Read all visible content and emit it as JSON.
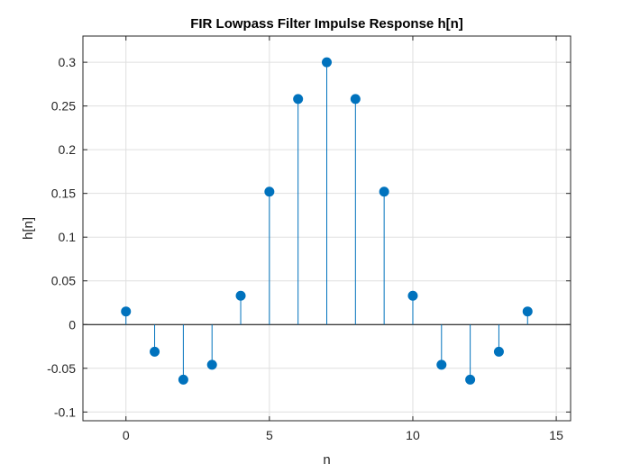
{
  "chart_data": {
    "type": "stem",
    "title": "FIR Lowpass Filter Impulse Response h[n]",
    "xlabel": "n",
    "ylabel": "h[n]",
    "xlim": [
      -1.5,
      15.5
    ],
    "ylim": [
      -0.11,
      0.33
    ],
    "xticks": [
      0,
      5,
      10,
      15
    ],
    "yticks": [
      -0.1,
      -0.05,
      0,
      0.05,
      0.1,
      0.15,
      0.2,
      0.25,
      0.3
    ],
    "ytick_labels": [
      "-0.1",
      "-0.05",
      "0",
      "0.05",
      "0.1",
      "0.15",
      "0.2",
      "0.25",
      "0.3"
    ],
    "grid": true,
    "series": [
      {
        "x": [
          0,
          1,
          2,
          3,
          4,
          5,
          6,
          7,
          8,
          9,
          10,
          11,
          12,
          13,
          14
        ],
        "values": [
          0.015,
          -0.031,
          -0.063,
          -0.046,
          0.033,
          0.152,
          0.258,
          0.3,
          0.258,
          0.152,
          0.033,
          -0.046,
          -0.063,
          -0.031,
          0.015
        ]
      }
    ]
  },
  "colors": {
    "stem": "#0072BD",
    "axis": "#262626",
    "grid": "#DFDFDF",
    "baseline": "#000000"
  }
}
